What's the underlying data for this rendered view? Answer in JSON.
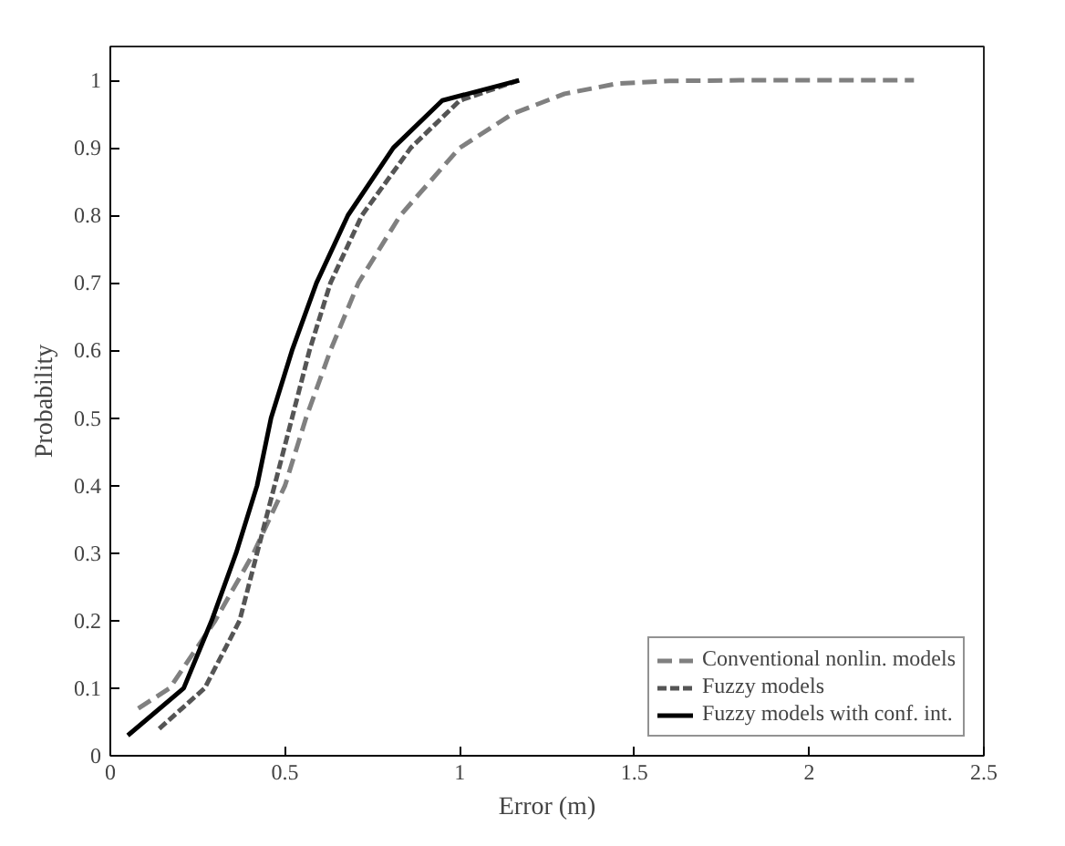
{
  "chart_data": {
    "type": "line",
    "xlabel": "Error (m)",
    "ylabel": "Probability",
    "xlim": [
      0,
      2.5
    ],
    "ylim": [
      0,
      1.05
    ],
    "xticks": [
      0,
      0.5,
      1,
      1.5,
      2,
      2.5
    ],
    "yticks": [
      0,
      0.1,
      0.2,
      0.3,
      0.4,
      0.5,
      0.6,
      0.7,
      0.8,
      0.9,
      1
    ],
    "grid": false,
    "legend": "bottom right",
    "marker": "none",
    "series": [
      {
        "name": "Conventional nonlin. models",
        "color": "#808080",
        "line_style": "dashed",
        "x": [
          0.08,
          0.17,
          0.3,
          0.41,
          0.5,
          0.56,
          0.63,
          0.71,
          0.83,
          1.0,
          1.15,
          1.3,
          1.45,
          1.6,
          1.8,
          2.0,
          2.3
        ],
        "values": [
          0.07,
          0.1,
          0.2,
          0.3,
          0.4,
          0.5,
          0.6,
          0.7,
          0.8,
          0.9,
          0.95,
          0.98,
          0.995,
          0.999,
          1.0,
          1.0,
          1.0
        ]
      },
      {
        "name": "Fuzzy models",
        "color": "#555555",
        "line_style": "dashed",
        "x": [
          0.14,
          0.27,
          0.37,
          0.42,
          0.47,
          0.52,
          0.57,
          0.63,
          0.72,
          0.86,
          1.0,
          1.17
        ],
        "values": [
          0.04,
          0.1,
          0.2,
          0.3,
          0.4,
          0.5,
          0.6,
          0.7,
          0.8,
          0.9,
          0.97,
          1.0
        ]
      },
      {
        "name": "Fuzzy models with conf. int.",
        "color": "#000000",
        "line_style": "solid",
        "x": [
          0.05,
          0.21,
          0.29,
          0.36,
          0.42,
          0.46,
          0.52,
          0.59,
          0.68,
          0.81,
          0.95,
          1.17
        ],
        "values": [
          0.03,
          0.1,
          0.2,
          0.3,
          0.4,
          0.5,
          0.6,
          0.7,
          0.8,
          0.9,
          0.97,
          1.0
        ]
      }
    ]
  }
}
